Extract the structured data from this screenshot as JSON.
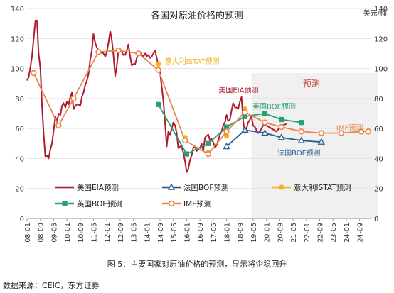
{
  "chart_data": {
    "type": "line",
    "title": "各国对原油价格的预测",
    "unit_label": "美元/桶",
    "forecast_label": "预测",
    "ylim": [
      0,
      140
    ],
    "yticks": [
      0,
      20,
      40,
      60,
      80,
      100,
      120,
      140
    ],
    "x_range": [
      2008.0,
      2025.25
    ],
    "xtick_labels": [
      "08-01",
      "08-09",
      "09-05",
      "10-01",
      "10-09",
      "11-05",
      "12-01",
      "12-09",
      "13-05",
      "14-01",
      "14-09",
      "15-05",
      "16-01",
      "16-09",
      "17-05",
      "18-01",
      "18-09",
      "19-05",
      "20-01",
      "20-09",
      "21-05",
      "22-01",
      "22-09",
      "23-05",
      "24-01",
      "24-09"
    ],
    "forecast_start": 2019.25,
    "grid": true,
    "legend_position": "bottom",
    "series": [
      {
        "name": "美国EIA预测",
        "color": "#b01c2e",
        "style": "line",
        "points": [
          [
            2008.0,
            92
          ],
          [
            2008.08,
            94
          ],
          [
            2008.17,
            101
          ],
          [
            2008.25,
            108
          ],
          [
            2008.33,
            120
          ],
          [
            2008.42,
            132
          ],
          [
            2008.5,
            132
          ],
          [
            2008.58,
            110
          ],
          [
            2008.67,
            100
          ],
          [
            2008.75,
            76
          ],
          [
            2008.83,
            57
          ],
          [
            2008.92,
            41
          ],
          [
            2009.0,
            42
          ],
          [
            2009.08,
            40
          ],
          [
            2009.17,
            46
          ],
          [
            2009.25,
            50
          ],
          [
            2009.33,
            58
          ],
          [
            2009.42,
            68
          ],
          [
            2009.5,
            64
          ],
          [
            2009.58,
            70
          ],
          [
            2009.67,
            69
          ],
          [
            2009.75,
            75
          ],
          [
            2009.83,
            77
          ],
          [
            2009.92,
            74
          ],
          [
            2010.0,
            78
          ],
          [
            2010.08,
            76
          ],
          [
            2010.17,
            81
          ],
          [
            2010.25,
            84
          ],
          [
            2010.33,
            73
          ],
          [
            2010.42,
            75
          ],
          [
            2010.5,
            76
          ],
          [
            2010.58,
            76
          ],
          [
            2010.67,
            75
          ],
          [
            2010.75,
            81
          ],
          [
            2010.83,
            84
          ],
          [
            2010.92,
            89
          ],
          [
            2011.0,
            92
          ],
          [
            2011.08,
            96
          ],
          [
            2011.17,
            106
          ],
          [
            2011.25,
            112
          ],
          [
            2011.33,
            123
          ],
          [
            2011.42,
            117
          ],
          [
            2011.5,
            114
          ],
          [
            2011.58,
            112
          ],
          [
            2011.67,
            110
          ],
          [
            2011.75,
            111
          ],
          [
            2011.83,
            110
          ],
          [
            2011.92,
            108
          ],
          [
            2012.0,
            111
          ],
          [
            2012.08,
            117
          ],
          [
            2012.17,
            125
          ],
          [
            2012.25,
            119
          ],
          [
            2012.33,
            109
          ],
          [
            2012.42,
            95
          ],
          [
            2012.5,
            102
          ],
          [
            2012.58,
            112
          ],
          [
            2012.67,
            113
          ],
          [
            2012.75,
            111
          ],
          [
            2012.83,
            109
          ],
          [
            2012.92,
            109
          ],
          [
            2013.0,
            112
          ],
          [
            2013.08,
            116
          ],
          [
            2013.17,
            108
          ],
          [
            2013.25,
            102
          ],
          [
            2013.33,
            103
          ],
          [
            2013.42,
            103
          ],
          [
            2013.5,
            107
          ],
          [
            2013.58,
            110
          ],
          [
            2013.67,
            111
          ],
          [
            2013.75,
            109
          ],
          [
            2013.83,
            108
          ],
          [
            2013.92,
            110
          ],
          [
            2014.0,
            108
          ],
          [
            2014.08,
            109
          ],
          [
            2014.17,
            107
          ],
          [
            2014.25,
            108
          ],
          [
            2014.33,
            110
          ],
          [
            2014.42,
            112
          ],
          [
            2014.5,
            107
          ],
          [
            2014.58,
            102
          ],
          [
            2014.67,
            97
          ],
          [
            2014.75,
            88
          ],
          [
            2014.83,
            79
          ],
          [
            2014.92,
            63
          ],
          [
            2015.0,
            48
          ],
          [
            2015.08,
            58
          ],
          [
            2015.17,
            56
          ],
          [
            2015.25,
            60
          ],
          [
            2015.33,
            64
          ],
          [
            2015.42,
            62
          ],
          [
            2015.5,
            57
          ],
          [
            2015.58,
            47
          ],
          [
            2015.67,
            48
          ],
          [
            2015.75,
            48
          ],
          [
            2015.83,
            44
          ],
          [
            2015.92,
            38
          ],
          [
            2016.0,
            31
          ],
          [
            2016.08,
            33
          ],
          [
            2016.17,
            39
          ],
          [
            2016.25,
            42
          ],
          [
            2016.33,
            47
          ],
          [
            2016.42,
            48
          ],
          [
            2016.5,
            45
          ],
          [
            2016.58,
            46
          ],
          [
            2016.67,
            47
          ],
          [
            2016.75,
            50
          ],
          [
            2016.83,
            45
          ],
          [
            2016.92,
            54
          ],
          [
            2017.0,
            55
          ],
          [
            2017.08,
            56
          ],
          [
            2017.17,
            52
          ],
          [
            2017.25,
            53
          ],
          [
            2017.33,
            51
          ],
          [
            2017.42,
            47
          ],
          [
            2017.5,
            49
          ],
          [
            2017.58,
            52
          ],
          [
            2017.67,
            56
          ],
          [
            2017.75,
            58
          ],
          [
            2017.83,
            62
          ],
          [
            2017.92,
            64
          ],
          [
            2018.0,
            69
          ],
          [
            2018.08,
            65
          ],
          [
            2018.17,
            66
          ],
          [
            2018.25,
            72
          ],
          [
            2018.33,
            77
          ],
          [
            2018.42,
            74
          ],
          [
            2018.5,
            74
          ],
          [
            2018.58,
            73
          ],
          [
            2018.67,
            78
          ],
          [
            2018.75,
            81
          ],
          [
            2018.83,
            65
          ],
          [
            2018.92,
            57
          ],
          [
            2019.0,
            60
          ],
          [
            2019.08,
            64
          ],
          [
            2019.17,
            66
          ],
          [
            2019.25,
            68
          ],
          [
            2019.33,
            62
          ],
          [
            2019.42,
            61
          ],
          [
            2019.5,
            59
          ],
          [
            2019.58,
            57
          ],
          [
            2019.67,
            58
          ],
          [
            2019.75,
            60
          ],
          [
            2019.83,
            62
          ],
          [
            2019.92,
            63
          ],
          [
            2020.0,
            62
          ],
          [
            2020.25,
            60
          ],
          [
            2020.5,
            58
          ],
          [
            2020.75,
            62
          ],
          [
            2021.0,
            63
          ]
        ]
      },
      {
        "name": "法国BOF预测",
        "color": "#2a5e8c",
        "style": "line",
        "marker": "triangle-open",
        "points": [
          [
            2018.0,
            48
          ],
          [
            2018.92,
            59
          ],
          [
            2019.92,
            57
          ],
          [
            2020.75,
            54
          ],
          [
            2021.75,
            52
          ],
          [
            2022.75,
            51
          ]
        ]
      },
      {
        "name": "意大利ISTAT预测",
        "color": "#f0b418",
        "style": "markers",
        "marker": "circle-filled",
        "points": [
          [
            2014.58,
            103
          ],
          [
            2015.92,
            54
          ],
          [
            2017.08,
            44
          ],
          [
            2018.0,
            55
          ],
          [
            2018.92,
            73
          ],
          [
            2019.92,
            64
          ]
        ]
      },
      {
        "name": "英国BOE预测",
        "color": "#2aa06e",
        "style": "line",
        "marker": "square-filled",
        "points": [
          [
            2014.58,
            76
          ],
          [
            2016.0,
            43
          ],
          [
            2017.08,
            50
          ],
          [
            2018.0,
            61
          ],
          [
            2018.92,
            68
          ],
          [
            2019.92,
            70
          ],
          [
            2020.75,
            66
          ],
          [
            2021.75,
            64
          ]
        ]
      },
      {
        "name": "IMF预测",
        "color": "#e8864e",
        "style": "line",
        "marker": "circle-open",
        "points": [
          [
            2008.33,
            97
          ],
          [
            2009.58,
            62
          ],
          [
            2010.33,
            80
          ],
          [
            2011.58,
            111
          ],
          [
            2012.58,
            112
          ],
          [
            2013.58,
            110
          ],
          [
            2014.58,
            99
          ],
          [
            2015.92,
            52
          ],
          [
            2017.08,
            43
          ],
          [
            2018.0,
            58
          ],
          [
            2018.92,
            71
          ],
          [
            2019.92,
            64
          ],
          [
            2020.75,
            61
          ],
          [
            2021.75,
            58
          ],
          [
            2022.75,
            57
          ],
          [
            2023.75,
            57
          ],
          [
            2024.75,
            58
          ],
          [
            2025.1,
            58
          ]
        ]
      }
    ],
    "annotations": [
      {
        "text": "意大利ISTAT预测",
        "series": 2,
        "x": 2014.9,
        "y": 103
      },
      {
        "text": "美国EIA预测",
        "series": 0,
        "x": 2017.6,
        "y": 84
      },
      {
        "text": "英国BOE预测",
        "series": 3,
        "x": 2019.3,
        "y": 73
      },
      {
        "text": "IMF预测",
        "series": 4,
        "x": 2023.5,
        "y": 59
      },
      {
        "text": "法国BOF预测",
        "series": 1,
        "x": 2020.55,
        "y": 42
      }
    ]
  },
  "caption": "图 5：主要国家对原油价格的预测，显示将企稳回升",
  "source": "数据来源：CEIC，东方证券"
}
